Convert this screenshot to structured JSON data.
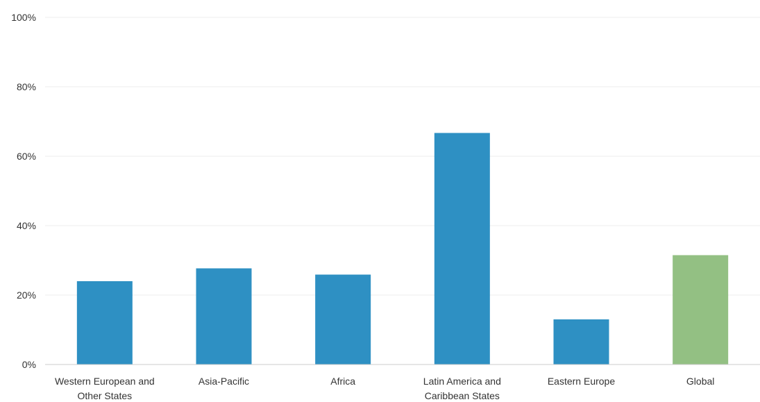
{
  "chart_data": {
    "type": "bar",
    "title": "",
    "xlabel": "",
    "ylabel": "",
    "categories": [
      [
        "Western European and",
        "Other States"
      ],
      [
        "Asia-Pacific"
      ],
      [
        "Africa"
      ],
      [
        "Latin America and",
        "Caribbean States"
      ],
      [
        "Eastern Europe"
      ],
      [
        "Global"
      ]
    ],
    "values": [
      24.0,
      27.7,
      25.9,
      66.7,
      13.0,
      31.5
    ],
    "bar_colors": [
      "#2e90c3",
      "#2e90c3",
      "#2e90c3",
      "#2e90c3",
      "#2e90c3",
      "#93c083"
    ],
    "ylim": [
      0,
      100
    ],
    "yticks": [
      0,
      20,
      40,
      60,
      80,
      100
    ],
    "ytick_labels": [
      "0%",
      "20%",
      "40%",
      "60%",
      "80%",
      "100%"
    ],
    "grid": true,
    "legend": "none"
  }
}
